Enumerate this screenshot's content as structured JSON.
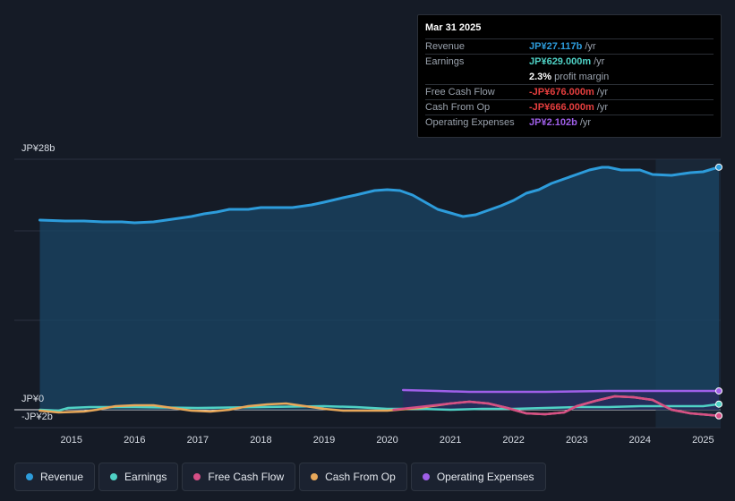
{
  "tooltip": {
    "date": "Mar 31 2025",
    "rows": [
      {
        "label": "Revenue",
        "value": "JP¥27.117b",
        "unit": "/yr",
        "color": "#2d9cdb"
      },
      {
        "label": "Earnings",
        "value": "JP¥629.000m",
        "unit": "/yr",
        "color": "#4fd1c5"
      },
      {
        "label": "",
        "value": "2.3%",
        "unit": "profit margin",
        "color": "#ffffff"
      },
      {
        "label": "Free Cash Flow",
        "value": "-JP¥676.000m",
        "unit": "/yr",
        "color": "#e53e3e"
      },
      {
        "label": "Cash From Op",
        "value": "-JP¥666.000m",
        "unit": "/yr",
        "color": "#e53e3e"
      },
      {
        "label": "Operating Expenses",
        "value": "JP¥2.102b",
        "unit": "/yr",
        "color": "#9f5fe8"
      }
    ]
  },
  "chart_data": {
    "type": "line",
    "y_unit": "JP¥ billions",
    "ylim": [
      -2,
      28
    ],
    "y_tick_labels": {
      "top": "JP¥28b",
      "zero": "JP¥0",
      "bottom": "-JP¥2b"
    },
    "x_ticks": [
      "2015",
      "2016",
      "2017",
      "2018",
      "2019",
      "2020",
      "2021",
      "2022",
      "2023",
      "2024",
      "2025"
    ],
    "x_range": [
      2014.55,
      2025.25
    ],
    "highlight_from": 2024.25,
    "series": [
      {
        "name": "Revenue",
        "color": "#2d9cdb",
        "fill": true,
        "points": [
          [
            2014.5,
            21.2
          ],
          [
            2014.9,
            21.1
          ],
          [
            2015.2,
            21.1
          ],
          [
            2015.5,
            21.0
          ],
          [
            2015.8,
            21.0
          ],
          [
            2016.0,
            20.9
          ],
          [
            2016.3,
            21.0
          ],
          [
            2016.6,
            21.3
          ],
          [
            2016.9,
            21.6
          ],
          [
            2017.1,
            21.9
          ],
          [
            2017.3,
            22.1
          ],
          [
            2017.5,
            22.4
          ],
          [
            2017.8,
            22.4
          ],
          [
            2018.0,
            22.6
          ],
          [
            2018.3,
            22.6
          ],
          [
            2018.5,
            22.6
          ],
          [
            2018.8,
            22.9
          ],
          [
            2019.0,
            23.2
          ],
          [
            2019.3,
            23.7
          ],
          [
            2019.5,
            24.0
          ],
          [
            2019.8,
            24.5
          ],
          [
            2020.0,
            24.6
          ],
          [
            2020.2,
            24.5
          ],
          [
            2020.4,
            24.0
          ],
          [
            2020.6,
            23.2
          ],
          [
            2020.8,
            22.4
          ],
          [
            2021.0,
            22.0
          ],
          [
            2021.2,
            21.6
          ],
          [
            2021.4,
            21.8
          ],
          [
            2021.6,
            22.3
          ],
          [
            2021.8,
            22.8
          ],
          [
            2022.0,
            23.4
          ],
          [
            2022.2,
            24.2
          ],
          [
            2022.4,
            24.6
          ],
          [
            2022.6,
            25.3
          ],
          [
            2022.8,
            25.8
          ],
          [
            2023.0,
            26.3
          ],
          [
            2023.2,
            26.8
          ],
          [
            2023.4,
            27.1
          ],
          [
            2023.5,
            27.1
          ],
          [
            2023.7,
            26.8
          ],
          [
            2024.0,
            26.8
          ],
          [
            2024.2,
            26.3
          ],
          [
            2024.5,
            26.2
          ],
          [
            2024.8,
            26.5
          ],
          [
            2025.0,
            26.6
          ],
          [
            2025.25,
            27.117
          ]
        ]
      },
      {
        "name": "Earnings",
        "color": "#4fd1c5",
        "fill": false,
        "points": [
          [
            2014.5,
            0.0
          ],
          [
            2014.8,
            -0.1
          ],
          [
            2014.95,
            0.2
          ],
          [
            2015.3,
            0.3
          ],
          [
            2016.0,
            0.3
          ],
          [
            2017.0,
            0.2
          ],
          [
            2018.0,
            0.3
          ],
          [
            2019.0,
            0.4
          ],
          [
            2019.5,
            0.3
          ],
          [
            2020.0,
            0.1
          ],
          [
            2020.5,
            0.1
          ],
          [
            2021.0,
            0.0
          ],
          [
            2021.5,
            0.1
          ],
          [
            2022.0,
            0.1
          ],
          [
            2022.5,
            0.2
          ],
          [
            2023.0,
            0.3
          ],
          [
            2023.5,
            0.3
          ],
          [
            2024.0,
            0.4
          ],
          [
            2024.5,
            0.4
          ],
          [
            2025.0,
            0.4
          ],
          [
            2025.25,
            0.629
          ]
        ]
      },
      {
        "name": "Free Cash Flow",
        "color": "#d64f86",
        "fill": false,
        "points": [
          [
            2020.1,
            0.0
          ],
          [
            2020.5,
            0.3
          ],
          [
            2021.0,
            0.7
          ],
          [
            2021.3,
            0.9
          ],
          [
            2021.6,
            0.7
          ],
          [
            2021.9,
            0.2
          ],
          [
            2022.2,
            -0.4
          ],
          [
            2022.5,
            -0.5
          ],
          [
            2022.8,
            -0.3
          ],
          [
            2023.0,
            0.4
          ],
          [
            2023.3,
            1.0
          ],
          [
            2023.6,
            1.5
          ],
          [
            2023.9,
            1.4
          ],
          [
            2024.2,
            1.1
          ],
          [
            2024.5,
            0.0
          ],
          [
            2024.8,
            -0.4
          ],
          [
            2025.25,
            -0.676
          ]
        ]
      },
      {
        "name": "Cash From Op",
        "color": "#e8a85a",
        "fill": false,
        "points": [
          [
            2014.5,
            -0.1
          ],
          [
            2014.8,
            -0.3
          ],
          [
            2015.2,
            -0.2
          ],
          [
            2015.4,
            0.0
          ],
          [
            2015.7,
            0.4
          ],
          [
            2016.0,
            0.5
          ],
          [
            2016.3,
            0.5
          ],
          [
            2016.6,
            0.2
          ],
          [
            2016.9,
            -0.1
          ],
          [
            2017.2,
            -0.2
          ],
          [
            2017.5,
            0.0
          ],
          [
            2017.8,
            0.4
          ],
          [
            2018.1,
            0.6
          ],
          [
            2018.4,
            0.7
          ],
          [
            2018.7,
            0.4
          ],
          [
            2019.0,
            0.1
          ],
          [
            2019.3,
            -0.1
          ],
          [
            2019.6,
            -0.1
          ],
          [
            2020.0,
            -0.1
          ],
          [
            2020.5,
            0.2
          ],
          [
            2021.0,
            0.7
          ],
          [
            2021.3,
            0.9
          ],
          [
            2021.6,
            0.7
          ],
          [
            2021.9,
            0.2
          ],
          [
            2022.2,
            -0.4
          ],
          [
            2022.5,
            -0.5
          ],
          [
            2022.8,
            -0.3
          ],
          [
            2023.0,
            0.4
          ],
          [
            2023.3,
            1.0
          ],
          [
            2023.6,
            1.5
          ],
          [
            2023.9,
            1.4
          ],
          [
            2024.2,
            1.1
          ],
          [
            2024.5,
            0.0
          ],
          [
            2024.8,
            -0.4
          ],
          [
            2025.25,
            -0.666
          ]
        ]
      },
      {
        "name": "Operating Expenses",
        "color": "#9f5fe8",
        "fill": true,
        "points": [
          [
            2020.25,
            2.2
          ],
          [
            2020.8,
            2.1
          ],
          [
            2021.3,
            2.0
          ],
          [
            2022.0,
            2.0
          ],
          [
            2022.5,
            2.0
          ],
          [
            2023.0,
            2.05
          ],
          [
            2023.5,
            2.1
          ],
          [
            2024.0,
            2.1
          ],
          [
            2024.5,
            2.1
          ],
          [
            2025.0,
            2.1
          ],
          [
            2025.25,
            2.102
          ]
        ]
      }
    ]
  },
  "legend": [
    {
      "label": "Revenue",
      "color": "#2d9cdb"
    },
    {
      "label": "Earnings",
      "color": "#4fd1c5"
    },
    {
      "label": "Free Cash Flow",
      "color": "#d64f86"
    },
    {
      "label": "Cash From Op",
      "color": "#e8a85a"
    },
    {
      "label": "Operating Expenses",
      "color": "#9f5fe8"
    }
  ]
}
